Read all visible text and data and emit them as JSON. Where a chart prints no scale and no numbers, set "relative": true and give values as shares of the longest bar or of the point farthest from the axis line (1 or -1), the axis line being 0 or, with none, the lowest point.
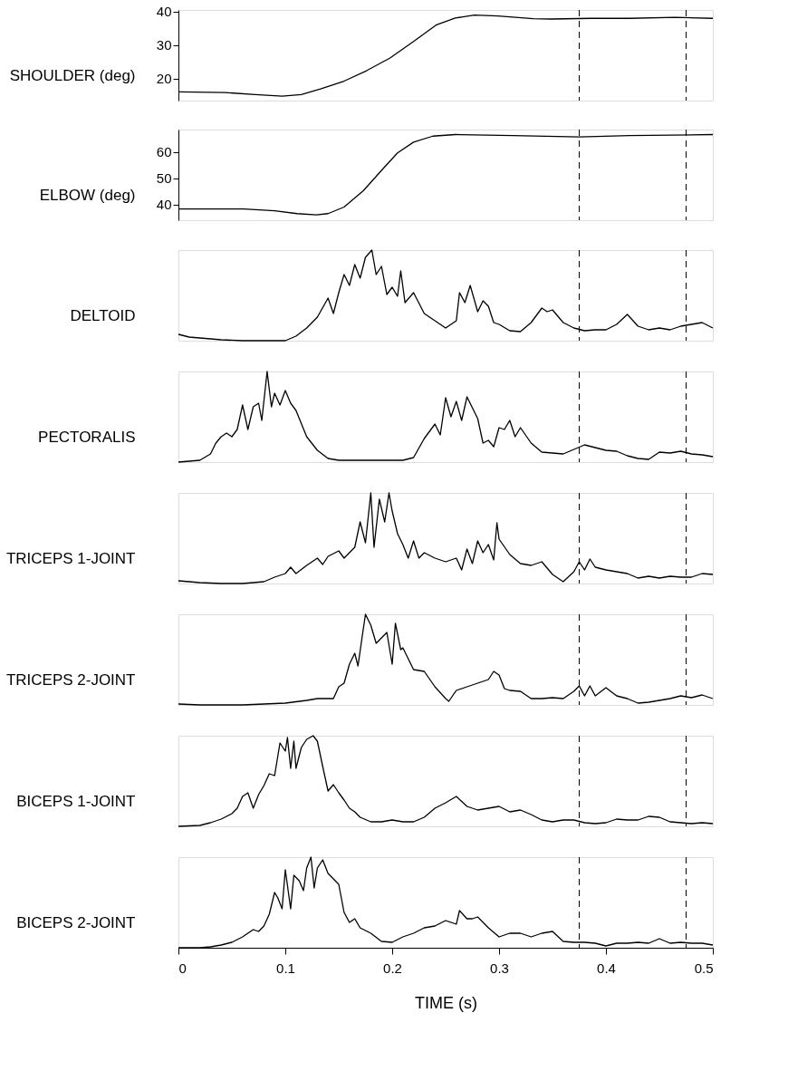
{
  "chart_data": [
    {
      "type": "line",
      "ylabel": "SHOULDER (deg)",
      "xlim": [
        0,
        0.5
      ],
      "ylim": [
        13.5,
        40.5
      ],
      "yticks": [
        20,
        30,
        40
      ],
      "tick_labels": "y",
      "ref_lines": [
        {
          "axis": "x",
          "value": 0.375,
          "line_style": "dashed"
        },
        {
          "axis": "x",
          "value": 0.475,
          "line_style": "dashed"
        }
      ],
      "x": [
        0,
        0.043,
        0.072,
        0.097,
        0.115,
        0.133,
        0.155,
        0.176,
        0.198,
        0.22,
        0.241,
        0.259,
        0.277,
        0.299,
        0.332,
        0.349,
        0.386,
        0.422,
        0.465,
        0.5
      ],
      "series": [
        {
          "color": "#000000",
          "values": [
            16.1,
            15.9,
            15.3,
            14.8,
            15.3,
            17.0,
            19.3,
            22.4,
            26.2,
            31.1,
            36.0,
            38.1,
            39.0,
            38.7,
            37.9,
            37.8,
            38.0,
            38.0,
            38.3,
            38.0
          ]
        }
      ]
    },
    {
      "type": "line",
      "ylabel": "ELBOW (deg)",
      "xlim": [
        0,
        0.5
      ],
      "ylim": [
        34,
        68.5
      ],
      "yticks": [
        40,
        50,
        60
      ],
      "tick_labels": "y",
      "ref_lines": [
        {
          "axis": "x",
          "value": 0.375,
          "line_style": "dashed"
        },
        {
          "axis": "x",
          "value": 0.475,
          "line_style": "dashed"
        }
      ],
      "x": [
        0,
        0.061,
        0.09,
        0.111,
        0.129,
        0.14,
        0.155,
        0.173,
        0.191,
        0.205,
        0.22,
        0.238,
        0.259,
        0.313,
        0.375,
        0.422,
        0.5
      ],
      "series": [
        {
          "color": "#000000",
          "values": [
            38.3,
            38.3,
            37.6,
            36.5,
            36.0,
            36.5,
            39.0,
            45.2,
            53.4,
            59.6,
            63.7,
            66.0,
            66.6,
            66.2,
            65.7,
            66.2,
            66.6
          ]
        }
      ]
    },
    {
      "type": "line",
      "ylabel": "DELTOID",
      "relative": true,
      "xlim": [
        0,
        0.5
      ],
      "tick_labels": false,
      "ref_lines": [
        {
          "axis": "x",
          "value": 0.375,
          "line_style": "dashed"
        },
        {
          "axis": "x",
          "value": 0.475,
          "line_style": "dashed"
        }
      ],
      "x": [
        0,
        0.01,
        0.02,
        0.04,
        0.06,
        0.08,
        0.1,
        0.11,
        0.12,
        0.13,
        0.14,
        0.145,
        0.15,
        0.155,
        0.16,
        0.165,
        0.17,
        0.175,
        0.181,
        0.185,
        0.19,
        0.195,
        0.2,
        0.205,
        0.208,
        0.212,
        0.22,
        0.23,
        0.24,
        0.25,
        0.26,
        0.263,
        0.268,
        0.273,
        0.28,
        0.285,
        0.29,
        0.295,
        0.3,
        0.31,
        0.32,
        0.33,
        0.34,
        0.345,
        0.35,
        0.36,
        0.37,
        0.38,
        0.39,
        0.4,
        0.41,
        0.42,
        0.43,
        0.44,
        0.45,
        0.46,
        0.47,
        0.48,
        0.49,
        0.5
      ],
      "series": [
        {
          "color": "#000000",
          "values": [
            0.07,
            0.04,
            0.03,
            0.01,
            0,
            0,
            0,
            0.05,
            0.14,
            0.26,
            0.47,
            0.3,
            0.53,
            0.73,
            0.61,
            0.84,
            0.69,
            0.92,
            1,
            0.73,
            0.82,
            0.51,
            0.59,
            0.49,
            0.77,
            0.42,
            0.53,
            0.3,
            0.22,
            0.14,
            0.22,
            0.53,
            0.42,
            0.61,
            0.32,
            0.44,
            0.38,
            0.2,
            0.18,
            0.11,
            0.1,
            0.2,
            0.36,
            0.32,
            0.34,
            0.2,
            0.14,
            0.11,
            0.12,
            0.12,
            0.18,
            0.29,
            0.16,
            0.12,
            0.14,
            0.12,
            0.16,
            0.18,
            0.2,
            0.14
          ]
        }
      ]
    },
    {
      "type": "line",
      "ylabel": "PECTORALIS",
      "relative": true,
      "xlim": [
        0,
        0.5
      ],
      "tick_labels": false,
      "ref_lines": [
        {
          "axis": "x",
          "value": 0.375,
          "line_style": "dashed"
        },
        {
          "axis": "x",
          "value": 0.475,
          "line_style": "dashed"
        }
      ],
      "x": [
        0,
        0.01,
        0.02,
        0.03,
        0.035,
        0.04,
        0.045,
        0.05,
        0.055,
        0.06,
        0.065,
        0.07,
        0.075,
        0.078,
        0.083,
        0.087,
        0.09,
        0.095,
        0.1,
        0.105,
        0.11,
        0.12,
        0.13,
        0.14,
        0.15,
        0.18,
        0.21,
        0.22,
        0.23,
        0.24,
        0.245,
        0.25,
        0.255,
        0.26,
        0.265,
        0.27,
        0.28,
        0.285,
        0.29,
        0.295,
        0.3,
        0.305,
        0.31,
        0.315,
        0.32,
        0.33,
        0.34,
        0.35,
        0.36,
        0.37,
        0.38,
        0.39,
        0.4,
        0.41,
        0.42,
        0.43,
        0.44,
        0.45,
        0.46,
        0.47,
        0.48,
        0.49,
        0.5
      ],
      "series": [
        {
          "color": "#000000",
          "values": [
            0,
            0.01,
            0.02,
            0.09,
            0.21,
            0.28,
            0.32,
            0.28,
            0.36,
            0.63,
            0.36,
            0.61,
            0.65,
            0.46,
            1,
            0.61,
            0.76,
            0.63,
            0.79,
            0.65,
            0.57,
            0.28,
            0.13,
            0.04,
            0.02,
            0.02,
            0.02,
            0.05,
            0.26,
            0.42,
            0.3,
            0.71,
            0.5,
            0.67,
            0.46,
            0.72,
            0.48,
            0.21,
            0.24,
            0.17,
            0.38,
            0.36,
            0.46,
            0.28,
            0.38,
            0.21,
            0.11,
            0.1,
            0.09,
            0.14,
            0.19,
            0.16,
            0.13,
            0.12,
            0.07,
            0.04,
            0.03,
            0.11,
            0.1,
            0.12,
            0.09,
            0.08,
            0.06
          ]
        }
      ]
    },
    {
      "type": "line",
      "ylabel": "TRICEPS 1-JOINT",
      "relative": true,
      "xlim": [
        0,
        0.5
      ],
      "tick_labels": false,
      "ref_lines": [
        {
          "axis": "x",
          "value": 0.375,
          "line_style": "dashed"
        },
        {
          "axis": "x",
          "value": 0.475,
          "line_style": "dashed"
        }
      ],
      "x": [
        0,
        0.01,
        0.02,
        0.04,
        0.06,
        0.08,
        0.09,
        0.1,
        0.105,
        0.11,
        0.12,
        0.13,
        0.135,
        0.14,
        0.15,
        0.155,
        0.16,
        0.165,
        0.17,
        0.175,
        0.18,
        0.183,
        0.188,
        0.193,
        0.197,
        0.2,
        0.205,
        0.21,
        0.215,
        0.22,
        0.225,
        0.23,
        0.24,
        0.25,
        0.26,
        0.265,
        0.27,
        0.275,
        0.28,
        0.285,
        0.29,
        0.295,
        0.298,
        0.3,
        0.31,
        0.32,
        0.33,
        0.34,
        0.35,
        0.36,
        0.37,
        0.375,
        0.38,
        0.385,
        0.39,
        0.4,
        0.41,
        0.42,
        0.43,
        0.44,
        0.45,
        0.46,
        0.47,
        0.48,
        0.49,
        0.5
      ],
      "series": [
        {
          "color": "#000000",
          "values": [
            0.03,
            0.02,
            0.01,
            0,
            0,
            0.02,
            0.07,
            0.11,
            0.18,
            0.11,
            0.2,
            0.28,
            0.21,
            0.3,
            0.36,
            0.28,
            0.34,
            0.4,
            0.68,
            0.45,
            1,
            0.4,
            0.93,
            0.68,
            1,
            0.8,
            0.55,
            0.43,
            0.28,
            0.47,
            0.28,
            0.34,
            0.28,
            0.24,
            0.28,
            0.15,
            0.38,
            0.22,
            0.47,
            0.34,
            0.43,
            0.26,
            0.67,
            0.49,
            0.32,
            0.22,
            0.2,
            0.24,
            0.1,
            0.02,
            0.13,
            0.24,
            0.15,
            0.27,
            0.18,
            0.15,
            0.13,
            0.11,
            0.06,
            0.08,
            0.06,
            0.08,
            0.07,
            0.07,
            0.11,
            0.1
          ]
        }
      ]
    },
    {
      "type": "line",
      "ylabel": "TRICEPS 2-JOINT",
      "relative": true,
      "xlim": [
        0,
        0.5
      ],
      "tick_labels": false,
      "ref_lines": [
        {
          "axis": "x",
          "value": 0.375,
          "line_style": "dashed"
        },
        {
          "axis": "x",
          "value": 0.475,
          "line_style": "dashed"
        }
      ],
      "x": [
        0,
        0.02,
        0.04,
        0.06,
        0.08,
        0.1,
        0.12,
        0.13,
        0.14,
        0.145,
        0.15,
        0.155,
        0.16,
        0.165,
        0.168,
        0.172,
        0.175,
        0.18,
        0.185,
        0.19,
        0.195,
        0.2,
        0.203,
        0.208,
        0.21,
        0.22,
        0.23,
        0.24,
        0.25,
        0.253,
        0.26,
        0.27,
        0.28,
        0.29,
        0.295,
        0.3,
        0.305,
        0.31,
        0.32,
        0.33,
        0.34,
        0.35,
        0.36,
        0.37,
        0.375,
        0.38,
        0.385,
        0.39,
        0.4,
        0.41,
        0.42,
        0.43,
        0.44,
        0.45,
        0.46,
        0.47,
        0.48,
        0.49,
        0.5
      ],
      "series": [
        {
          "color": "#000000",
          "values": [
            0.01,
            0,
            0,
            0,
            0.01,
            0.02,
            0.05,
            0.07,
            0.07,
            0.07,
            0.2,
            0.24,
            0.45,
            0.57,
            0.43,
            0.76,
            1,
            0.88,
            0.68,
            0.74,
            0.8,
            0.45,
            0.9,
            0.61,
            0.63,
            0.39,
            0.37,
            0.2,
            0.07,
            0.04,
            0.16,
            0.2,
            0.24,
            0.28,
            0.37,
            0.33,
            0.18,
            0.16,
            0.15,
            0.07,
            0.07,
            0.08,
            0.07,
            0.15,
            0.21,
            0.1,
            0.21,
            0.1,
            0.19,
            0.1,
            0.07,
            0.02,
            0.03,
            0.05,
            0.07,
            0.1,
            0.08,
            0.11,
            0.07
          ]
        }
      ]
    },
    {
      "type": "line",
      "ylabel": "BICEPS 1-JOINT",
      "relative": true,
      "xlim": [
        0,
        0.5
      ],
      "tick_labels": false,
      "ref_lines": [
        {
          "axis": "x",
          "value": 0.375,
          "line_style": "dashed"
        },
        {
          "axis": "x",
          "value": 0.475,
          "line_style": "dashed"
        }
      ],
      "x": [
        0,
        0.02,
        0.03,
        0.04,
        0.05,
        0.055,
        0.06,
        0.065,
        0.07,
        0.075,
        0.08,
        0.085,
        0.09,
        0.095,
        0.1,
        0.102,
        0.105,
        0.108,
        0.11,
        0.115,
        0.12,
        0.126,
        0.13,
        0.135,
        0.14,
        0.145,
        0.15,
        0.155,
        0.16,
        0.165,
        0.17,
        0.18,
        0.19,
        0.2,
        0.21,
        0.22,
        0.23,
        0.24,
        0.25,
        0.26,
        0.27,
        0.28,
        0.29,
        0.3,
        0.31,
        0.32,
        0.33,
        0.34,
        0.35,
        0.36,
        0.37,
        0.38,
        0.39,
        0.4,
        0.41,
        0.42,
        0.43,
        0.44,
        0.45,
        0.46,
        0.47,
        0.48,
        0.49,
        0.5
      ],
      "series": [
        {
          "color": "#000000",
          "values": [
            0,
            0.01,
            0.04,
            0.08,
            0.14,
            0.2,
            0.33,
            0.37,
            0.2,
            0.35,
            0.45,
            0.58,
            0.56,
            0.92,
            0.83,
            0.98,
            0.64,
            0.94,
            0.64,
            0.87,
            0.96,
            1,
            0.94,
            0.66,
            0.39,
            0.46,
            0.37,
            0.29,
            0.2,
            0.16,
            0.1,
            0.05,
            0.05,
            0.07,
            0.05,
            0.05,
            0.1,
            0.2,
            0.26,
            0.33,
            0.22,
            0.18,
            0.2,
            0.22,
            0.16,
            0.18,
            0.13,
            0.07,
            0.05,
            0.07,
            0.07,
            0.04,
            0.03,
            0.04,
            0.08,
            0.07,
            0.07,
            0.11,
            0.1,
            0.05,
            0.04,
            0.03,
            0.04,
            0.03
          ]
        }
      ]
    },
    {
      "type": "line",
      "ylabel": "BICEPS 2-JOINT",
      "xlabel": "TIME (s)",
      "relative": true,
      "xlim": [
        0,
        0.5
      ],
      "xticks": [
        0,
        0.1,
        0.2,
        0.3,
        0.4,
        0.5
      ],
      "tick_labels": "x",
      "ref_lines": [
        {
          "axis": "x",
          "value": 0.375,
          "line_style": "dashed"
        },
        {
          "axis": "x",
          "value": 0.475,
          "line_style": "dashed"
        }
      ],
      "x": [
        0,
        0.02,
        0.03,
        0.04,
        0.05,
        0.06,
        0.065,
        0.07,
        0.075,
        0.08,
        0.085,
        0.09,
        0.093,
        0.097,
        0.1,
        0.105,
        0.108,
        0.113,
        0.117,
        0.12,
        0.124,
        0.127,
        0.13,
        0.135,
        0.14,
        0.145,
        0.15,
        0.155,
        0.16,
        0.165,
        0.17,
        0.18,
        0.19,
        0.2,
        0.21,
        0.22,
        0.23,
        0.24,
        0.25,
        0.26,
        0.263,
        0.27,
        0.275,
        0.28,
        0.29,
        0.3,
        0.31,
        0.32,
        0.33,
        0.34,
        0.35,
        0.36,
        0.37,
        0.38,
        0.39,
        0.4,
        0.41,
        0.42,
        0.43,
        0.44,
        0.45,
        0.46,
        0.47,
        0.48,
        0.49,
        0.5
      ],
      "series": [
        {
          "color": "#000000",
          "values": [
            0,
            0,
            0.01,
            0.03,
            0.06,
            0.12,
            0.16,
            0.2,
            0.18,
            0.24,
            0.37,
            0.61,
            0.55,
            0.43,
            0.86,
            0.43,
            0.8,
            0.74,
            0.63,
            0.88,
            1,
            0.66,
            0.88,
            0.97,
            0.82,
            0.76,
            0.7,
            0.39,
            0.28,
            0.32,
            0.22,
            0.16,
            0.07,
            0.06,
            0.12,
            0.16,
            0.22,
            0.24,
            0.3,
            0.26,
            0.41,
            0.32,
            0.32,
            0.34,
            0.22,
            0.12,
            0.16,
            0.16,
            0.12,
            0.16,
            0.18,
            0.07,
            0.06,
            0.06,
            0.05,
            0.02,
            0.05,
            0.05,
            0.06,
            0.05,
            0.1,
            0.05,
            0.06,
            0.05,
            0.05,
            0.03
          ]
        }
      ]
    }
  ]
}
